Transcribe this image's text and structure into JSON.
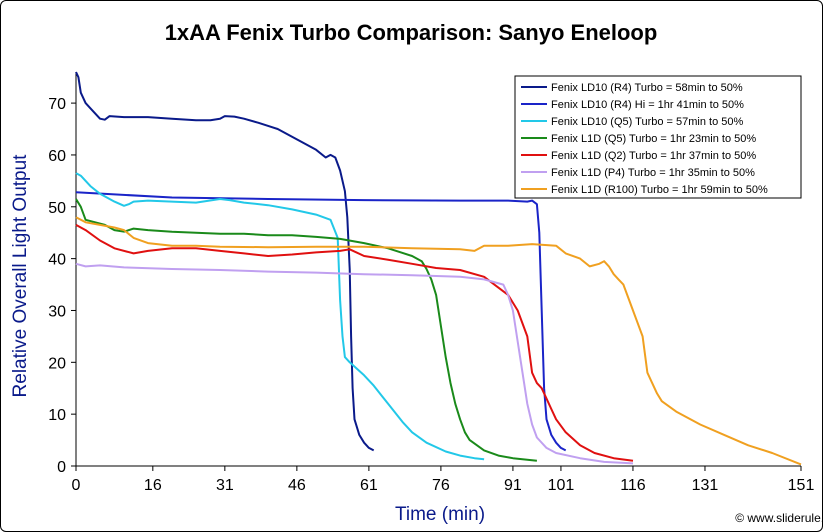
{
  "chart_data": {
    "type": "line",
    "title": "1xAA Fenix Turbo Comparison: Sanyo Eneloop",
    "xlabel": "Time (min)",
    "ylabel": "Relative Overall Light Output",
    "xlim": [
      0,
      151
    ],
    "ylim": [
      0,
      76
    ],
    "xticks": [
      0,
      16,
      31,
      46,
      61,
      76,
      91,
      101,
      116,
      131,
      151
    ],
    "yticks": [
      0,
      10,
      20,
      30,
      40,
      50,
      60,
      70
    ],
    "grid": false,
    "legend_position": "top-right",
    "watermark": "© www.sliderule.ca",
    "series": [
      {
        "name": "Fenix LD10 (R4) Turbo = 58min to 50%",
        "color": "#0a1a8a",
        "x": [
          0,
          0.5,
          1,
          2,
          3,
          5,
          6,
          7,
          10,
          15,
          20,
          25,
          28,
          30,
          31,
          33,
          35,
          38,
          42,
          46,
          50,
          52,
          53,
          54,
          55,
          56,
          56.5,
          57,
          57.3,
          57.6,
          58,
          59,
          60,
          61,
          62
        ],
        "y": [
          76,
          75,
          72,
          70,
          69,
          67,
          66.8,
          67.5,
          67.3,
          67.3,
          67,
          66.7,
          66.7,
          67,
          67.5,
          67.4,
          67,
          66.2,
          65,
          63,
          61,
          59.5,
          60,
          59.5,
          57,
          53,
          48,
          38,
          25,
          15,
          9,
          6,
          4.5,
          3.5,
          3
        ]
      },
      {
        "name": "Fenix LD10 (R4) Hi = 1hr 41min to 50%",
        "color": "#1a24c8",
        "x": [
          0,
          20,
          40,
          60,
          80,
          90,
          94,
          95,
          96,
          96.5,
          97,
          97.5,
          98,
          99,
          100,
          101,
          102
        ],
        "y": [
          52.8,
          51.8,
          51.5,
          51.3,
          51.2,
          51.2,
          51,
          51.2,
          50.5,
          45,
          30,
          15,
          9,
          6,
          4.5,
          3.5,
          3
        ]
      },
      {
        "name": "Fenix LD10 (Q5) Turbo = 57min to 50%",
        "color": "#22c8e8",
        "x": [
          0,
          1,
          3,
          5,
          8,
          10,
          11,
          12,
          15,
          20,
          25,
          30,
          32,
          35,
          40,
          45,
          50,
          53,
          54.5,
          55,
          55.5,
          56,
          57,
          60,
          62,
          65,
          68,
          70,
          73,
          77,
          80,
          83,
          85
        ],
        "y": [
          56.5,
          56,
          54,
          52.5,
          51,
          50.2,
          50.5,
          51,
          51.2,
          51,
          50.8,
          51.5,
          51.3,
          50.8,
          50.3,
          49.5,
          48.5,
          47.5,
          44,
          32,
          25,
          21,
          20,
          17.5,
          15.5,
          12,
          8.5,
          6.5,
          4.5,
          2.8,
          2,
          1.5,
          1.3
        ]
      },
      {
        "name": "Fenix L1D (Q5) Turbo = 1hr 23min to 50%",
        "color": "#1a8a1a",
        "x": [
          0,
          1,
          2,
          4,
          6,
          8,
          10,
          12,
          15,
          20,
          25,
          30,
          35,
          40,
          45,
          50,
          55,
          60,
          65,
          70,
          72,
          73,
          74,
          75,
          76,
          77,
          78,
          79,
          80,
          81,
          82,
          85,
          88,
          91,
          94,
          96
        ],
        "y": [
          51.5,
          50,
          47.5,
          47,
          46.5,
          45.5,
          45.2,
          45.8,
          45.5,
          45.2,
          45,
          44.8,
          44.8,
          44.5,
          44.5,
          44.2,
          43.8,
          43,
          42,
          40.5,
          39.5,
          38,
          36,
          33,
          27,
          21,
          16,
          12,
          9,
          6.5,
          5,
          3,
          2,
          1.5,
          1.2,
          1
        ]
      },
      {
        "name": "Fenix L1D (Q2) Turbo = 1hr 37min to 50%",
        "color": "#e01010",
        "x": [
          0,
          2,
          5,
          8,
          12,
          15,
          20,
          25,
          30,
          35,
          40,
          45,
          50,
          55,
          57,
          60,
          65,
          70,
          75,
          80,
          85,
          90,
          92,
          94,
          95,
          96,
          97,
          98,
          99,
          100,
          102,
          105,
          108,
          112,
          116
        ],
        "y": [
          46.5,
          45.5,
          43.5,
          42,
          41,
          41.5,
          42,
          42,
          41.5,
          41,
          40.5,
          40.8,
          41.2,
          41.5,
          41.8,
          40.5,
          39.8,
          39,
          38.2,
          37.8,
          36.5,
          33,
          30,
          25,
          18,
          16,
          15,
          13,
          11,
          9,
          6.5,
          4,
          2.5,
          1.5,
          1
        ]
      },
      {
        "name": "Fenix L1D (P4) Turbo = 1hr 35min to 50%",
        "color": "#c0a0f0",
        "x": [
          0,
          2,
          5,
          10,
          20,
          30,
          40,
          50,
          60,
          70,
          80,
          85,
          89,
          90,
          91,
          92,
          93,
          94,
          95,
          96,
          98,
          100,
          105,
          110,
          116
        ],
        "y": [
          39,
          38.5,
          38.7,
          38.3,
          38,
          37.8,
          37.5,
          37.3,
          37,
          36.8,
          36.5,
          36,
          35,
          33,
          30,
          24,
          18,
          12,
          8,
          5.5,
          3.5,
          2.5,
          1.5,
          0.8,
          0.5
        ]
      },
      {
        "name": "Fenix L1D (R100) Turbo = 1hr 59min to 50%",
        "color": "#f0a020",
        "x": [
          0,
          2,
          5,
          8,
          10,
          12,
          15,
          20,
          25,
          30,
          40,
          50,
          60,
          70,
          80,
          83,
          85,
          90,
          95,
          100,
          102,
          105,
          107,
          109,
          110,
          111,
          112,
          113,
          114,
          116,
          118,
          119,
          120,
          121,
          122,
          125,
          130,
          135,
          140,
          145,
          151
        ],
        "y": [
          48,
          47,
          46.5,
          46,
          45.5,
          44,
          43,
          42.5,
          42.5,
          42.3,
          42.2,
          42.3,
          42.3,
          42,
          41.8,
          41.5,
          42.5,
          42.5,
          42.8,
          42.5,
          41,
          40,
          38.5,
          39,
          39.5,
          38.5,
          37,
          36,
          35,
          30,
          25,
          18,
          16,
          14,
          12.5,
          10.5,
          8,
          6,
          4,
          2.5,
          0.3
        ]
      }
    ]
  }
}
